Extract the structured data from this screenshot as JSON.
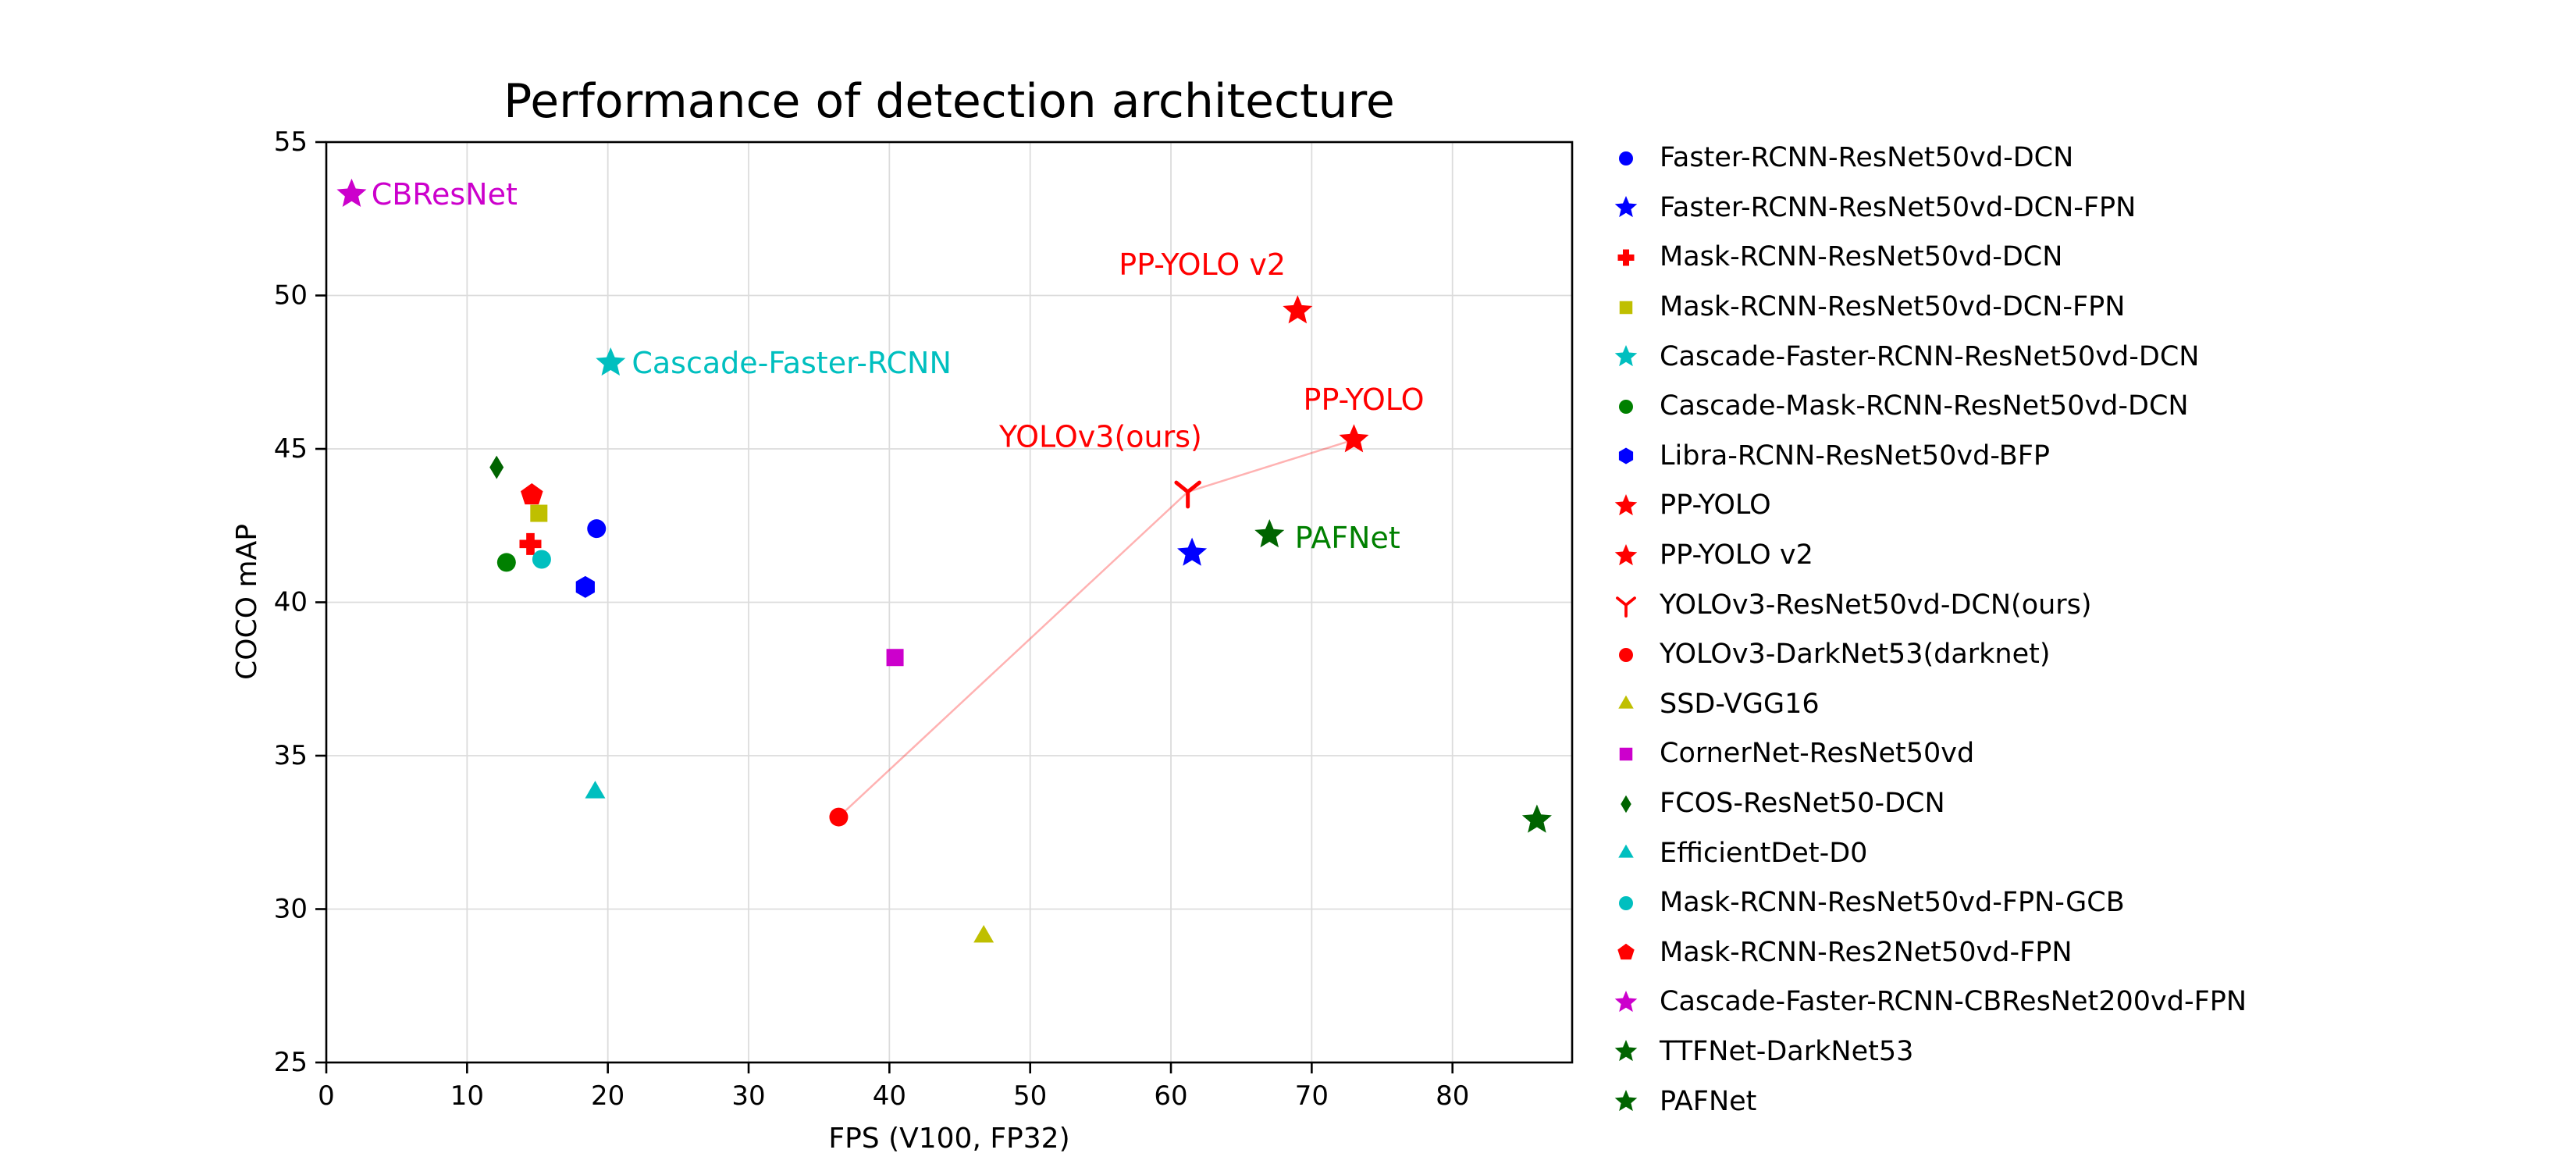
{
  "chart_data": {
    "type": "scatter",
    "title": "Performance of detection architecture",
    "xlabel": "FPS (V100, FP32)",
    "ylabel": "COCO mAP",
    "xlim": [
      0,
      88.5
    ],
    "ylim": [
      25,
      55
    ],
    "xticks": [
      0,
      10,
      20,
      30,
      40,
      50,
      60,
      70,
      80
    ],
    "yticks": [
      25,
      30,
      35,
      40,
      45,
      50,
      55
    ],
    "grid": true,
    "legend_position": "right-outside",
    "points": [
      {
        "label": "Faster-RCNN-ResNet50vd-DCN",
        "marker": "circle",
        "color": "#0000ff",
        "fps": 19.2,
        "map": 42.4
      },
      {
        "label": "Faster-RCNN-ResNet50vd-DCN-FPN",
        "marker": "star",
        "color": "#0000ff",
        "fps": 61.5,
        "map": 41.6
      },
      {
        "label": "Mask-RCNN-ResNet50vd-DCN",
        "marker": "plus",
        "color": "#ff0000",
        "fps": 14.5,
        "map": 41.9
      },
      {
        "label": "Mask-RCNN-ResNet50vd-DCN-FPN",
        "marker": "square",
        "color": "#bfbf00",
        "fps": 15.1,
        "map": 42.9
      },
      {
        "label": "Cascade-Faster-RCNN-ResNet50vd-DCN",
        "marker": "star",
        "color": "#00bfbf",
        "fps": 20.2,
        "map": 47.8
      },
      {
        "label": "Cascade-Mask-RCNN-ResNet50vd-DCN",
        "marker": "circle",
        "color": "#008000",
        "fps": 12.8,
        "map": 41.3
      },
      {
        "label": "Libra-RCNN-ResNet50vd-BFP",
        "marker": "hexagon",
        "color": "#0000ff",
        "fps": 18.4,
        "map": 40.5
      },
      {
        "label": "PP-YOLO",
        "marker": "star",
        "color": "#ff0000",
        "fps": 73.0,
        "map": 45.3
      },
      {
        "label": "PP-YOLO v2",
        "marker": "star",
        "color": "#ff0000",
        "fps": 69.0,
        "map": 49.5
      },
      {
        "label": "YOLOv3-ResNet50vd-DCN(ours)",
        "marker": "y-shape",
        "color": "#ff0000",
        "fps": 61.2,
        "map": 43.6
      },
      {
        "label": "YOLOv3-DarkNet53(darknet)",
        "marker": "circle",
        "color": "#ff0000",
        "fps": 36.4,
        "map": 33.0
      },
      {
        "label": "SSD-VGG16",
        "marker": "triangle-up",
        "color": "#bfbf00",
        "fps": 46.7,
        "map": 29.1
      },
      {
        "label": "CornerNet-ResNet50vd",
        "marker": "square",
        "color": "#cc00cc",
        "fps": 40.4,
        "map": 38.2
      },
      {
        "label": "FCOS-ResNet50-DCN",
        "marker": "diamond-thin",
        "color": "#006400",
        "fps": 12.1,
        "map": 44.4
      },
      {
        "label": "EfficientDet-D0",
        "marker": "triangle-up",
        "color": "#00bfbf",
        "fps": 19.1,
        "map": 33.8
      },
      {
        "label": "Mask-RCNN-ResNet50vd-FPN-GCB",
        "marker": "circle",
        "color": "#00bfbf",
        "fps": 15.3,
        "map": 41.4
      },
      {
        "label": "Mask-RCNN-Res2Net50vd-FPN",
        "marker": "pentagon",
        "color": "#ff0000",
        "fps": 14.6,
        "map": 43.5
      },
      {
        "label": "Cascade-Faster-RCNN-CBResNet200vd-FPN",
        "marker": "star",
        "color": "#cc00cc",
        "fps": 1.8,
        "map": 53.3
      },
      {
        "label": "TTFNet-DarkNet53",
        "marker": "star",
        "color": "#006400",
        "fps": 86.0,
        "map": 32.9
      },
      {
        "label": "PAFNet",
        "marker": "star",
        "color": "#006400",
        "fps": 67.0,
        "map": 42.2
      }
    ],
    "trend_line": {
      "color": "rgba(255,0,0,0.30)",
      "points": [
        [
          36.4,
          33.0
        ],
        [
          61.2,
          43.6
        ],
        [
          73.0,
          45.3
        ]
      ]
    },
    "annotations": [
      {
        "text": "CBResNet",
        "x": 3.2,
        "y": 53.3,
        "color": "#cc00cc"
      },
      {
        "text": "Cascade-Faster-RCNN",
        "x": 21.7,
        "y": 47.8,
        "color": "#00bfbf"
      },
      {
        "text": "PP-YOLO v2",
        "x": 56.3,
        "y": 51.0,
        "color": "#ff0000"
      },
      {
        "text": "PP-YOLO",
        "x": 69.4,
        "y": 46.6,
        "color": "#ff0000"
      },
      {
        "text": "YOLOv3(ours)",
        "x": 47.8,
        "y": 45.4,
        "color": "#ff0000"
      },
      {
        "text": "PAFNet",
        "x": 68.8,
        "y": 42.1,
        "color": "#008000"
      }
    ]
  }
}
